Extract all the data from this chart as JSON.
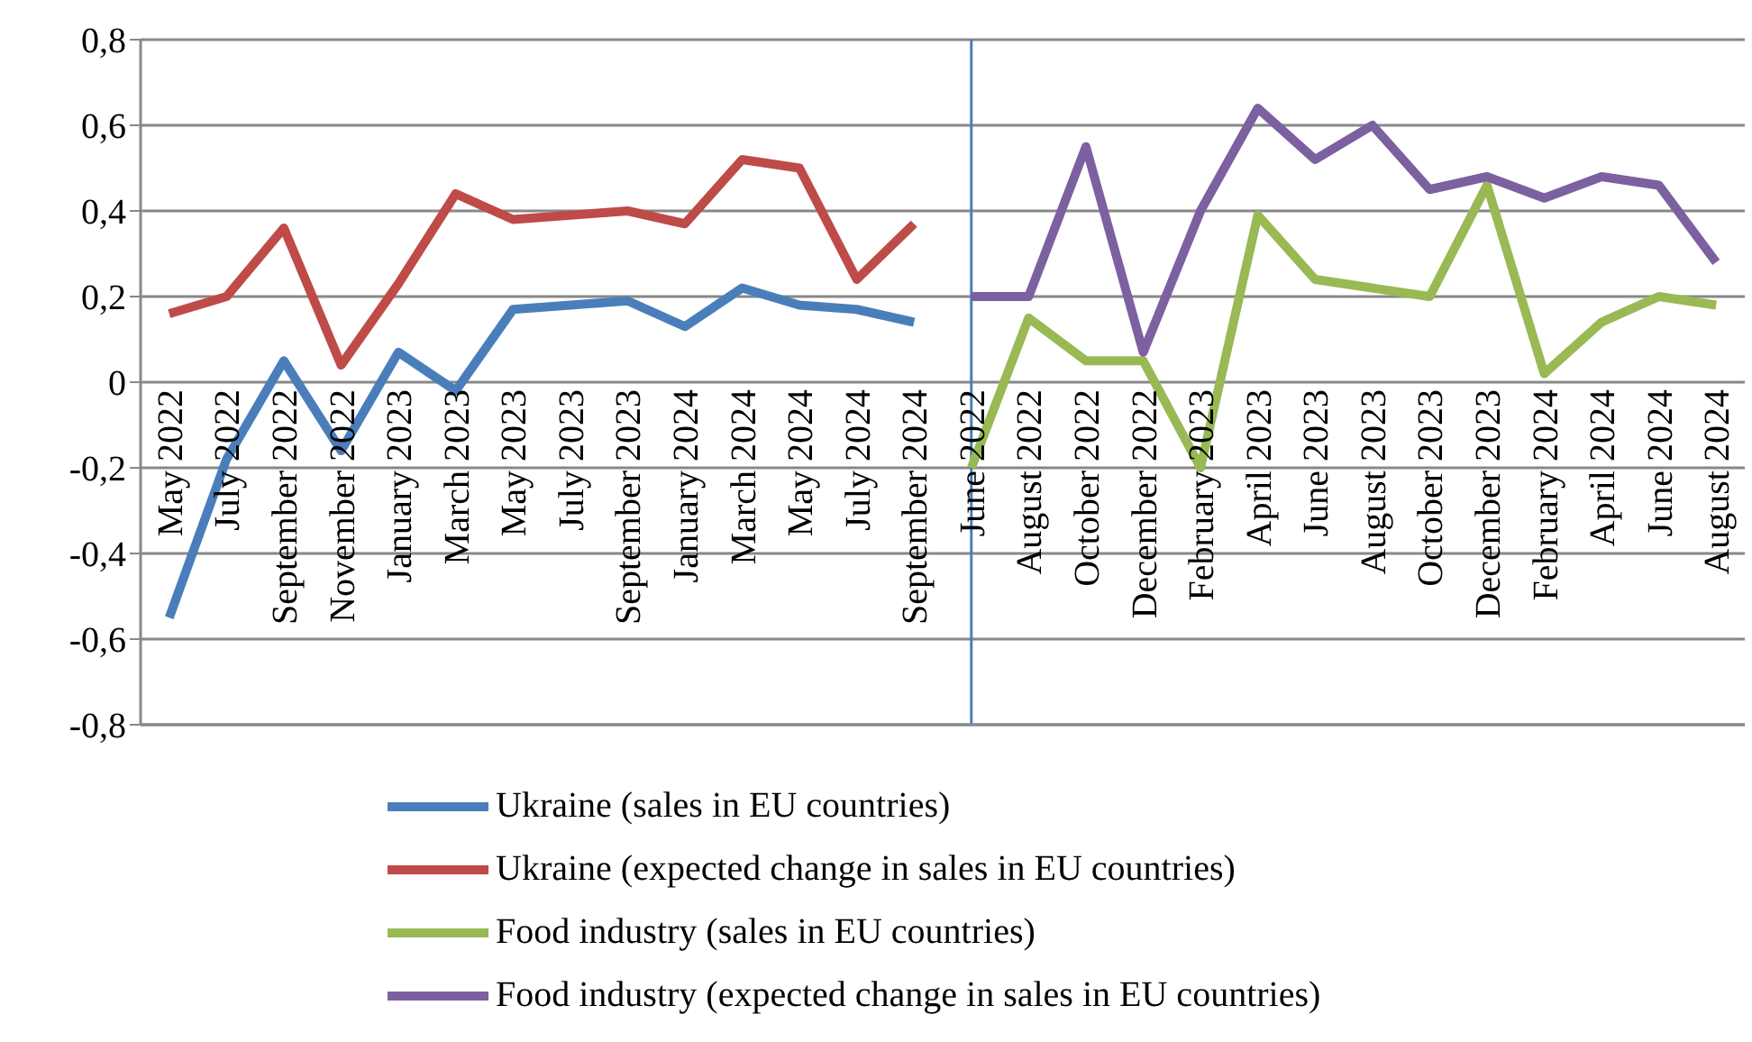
{
  "chart_data": {
    "type": "line",
    "categories": [
      "May 2022",
      "July 2022",
      "September 2022",
      "November 2022",
      "January 2023",
      "March 2023",
      "May 2023",
      "July 2023",
      "September 2023",
      "January 2024",
      "March 2024",
      "May 2024",
      "July 2024",
      "September 2024",
      "June 2022",
      "August 2022",
      "October 2022",
      "December 2022",
      "February 2023",
      "April 2023",
      "June 2023",
      "August 2023",
      "October 2023",
      "December 2023",
      "February 2024",
      "April 2024",
      "June 2024",
      "August 2024"
    ],
    "series": [
      {
        "name": "Ukraine (sales in EU countries)",
        "color": "#4a7ebb",
        "values": [
          -0.55,
          -0.18,
          0.05,
          -0.16,
          0.07,
          -0.02,
          0.17,
          0.18,
          0.19,
          0.13,
          0.22,
          0.18,
          0.17,
          0.14,
          null,
          null,
          null,
          null,
          null,
          null,
          null,
          null,
          null,
          null,
          null,
          null,
          null,
          null
        ]
      },
      {
        "name": "Ukraine (expected change in sales in EU countries)",
        "color": "#be4b48",
        "values": [
          0.16,
          0.2,
          0.36,
          0.04,
          0.23,
          0.44,
          0.38,
          0.39,
          0.4,
          0.37,
          0.52,
          0.5,
          0.24,
          0.37,
          null,
          null,
          null,
          null,
          null,
          null,
          null,
          null,
          null,
          null,
          null,
          null,
          null,
          null
        ]
      },
      {
        "name": "Food industry (sales in EU countries)",
        "color": "#98b954",
        "values": [
          null,
          null,
          null,
          null,
          null,
          null,
          null,
          null,
          null,
          null,
          null,
          null,
          null,
          null,
          -0.2,
          0.15,
          0.05,
          0.05,
          -0.2,
          0.39,
          0.24,
          0.22,
          0.2,
          0.46,
          0.02,
          0.14,
          0.2,
          0.18
        ]
      },
      {
        "name": "Food industry (expected change in sales in EU countries)",
        "color": "#7d60a0",
        "values": [
          null,
          null,
          null,
          null,
          null,
          null,
          null,
          null,
          null,
          null,
          null,
          null,
          null,
          null,
          0.2,
          0.2,
          0.55,
          0.07,
          0.4,
          0.64,
          0.52,
          0.6,
          0.45,
          0.48,
          0.43,
          0.48,
          0.46,
          0.28
        ]
      }
    ],
    "ylim": [
      -0.8,
      0.8
    ],
    "yticks": [
      {
        "value": -0.8,
        "label": "-0,8"
      },
      {
        "value": -0.6,
        "label": "-0,6"
      },
      {
        "value": -0.4,
        "label": "-0,4"
      },
      {
        "value": -0.2,
        "label": "-0,2"
      },
      {
        "value": 0,
        "label": "0"
      },
      {
        "value": 0.2,
        "label": "0,2"
      },
      {
        "value": 0.4,
        "label": "0,4"
      },
      {
        "value": 0.6,
        "label": "0,6"
      },
      {
        "value": 0.8,
        "label": "0,8"
      }
    ],
    "grid": "y",
    "legend": "bottom",
    "marker": "none",
    "line_style": "solid",
    "ref_lines": [
      {
        "axis": "x",
        "value": "June 2022",
        "color": "#4a7ebb"
      }
    ]
  }
}
